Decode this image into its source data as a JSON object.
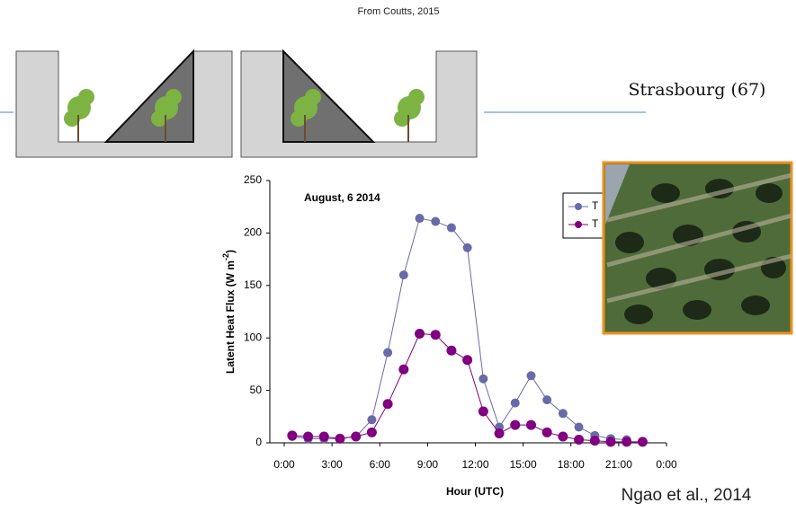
{
  "header": {
    "source": "From Coutts, 2015"
  },
  "photo": {
    "caption": "Strasbourg (67)"
  },
  "citation": "Ngao et al., 2014",
  "chart_data": {
    "type": "line",
    "annotation": "August, 6 2014",
    "x_label": "Hour (UTC)",
    "y_label": "Latent Heat Flux (W m",
    "y_label_sup": "-2",
    "y_label_end": ")",
    "x": [
      0.5,
      1.5,
      2.5,
      3.5,
      4.5,
      5.5,
      6.5,
      7.5,
      8.5,
      9.5,
      10.5,
      11.5,
      12.5,
      13.5,
      14.5,
      15.5,
      16.5,
      17.5,
      18.5,
      19.5,
      20.5,
      21.5,
      22.5
    ],
    "series": [
      {
        "name": "T",
        "color": "#6a6aa8",
        "marker_size": 5,
        "values": [
          6,
          4,
          4,
          4,
          6,
          22,
          86,
          160,
          214,
          211,
          205,
          186,
          61,
          15,
          38,
          64,
          41,
          28,
          15,
          7,
          4,
          3,
          null
        ]
      },
      {
        "name": "T",
        "color": "#800080",
        "marker_size": 5.5,
        "values": [
          7,
          6,
          6,
          4,
          6,
          10,
          37,
          70,
          104,
          103,
          88,
          79,
          30,
          9,
          17,
          17,
          10,
          6,
          3,
          2,
          1,
          1,
          1
        ]
      }
    ],
    "xlim": [
      0,
      24
    ],
    "xticks": [
      {
        "value": 0,
        "label": "0:00"
      },
      {
        "value": 3,
        "label": "3:00"
      },
      {
        "value": 6,
        "label": "6:00"
      },
      {
        "value": 9,
        "label": "9:00"
      },
      {
        "value": 12,
        "label": "12:00"
      },
      {
        "value": 15,
        "label": "15:00"
      },
      {
        "value": 18,
        "label": "18:00"
      },
      {
        "value": 21,
        "label": "21:00"
      },
      {
        "value": 24,
        "label": "0:00"
      }
    ],
    "ylim": [
      0,
      250
    ],
    "yticks": [
      0,
      50,
      100,
      150,
      200,
      250
    ],
    "legend": "top-right"
  }
}
